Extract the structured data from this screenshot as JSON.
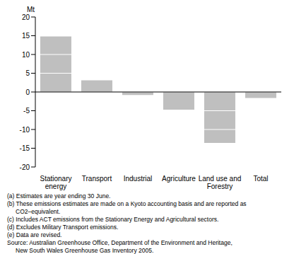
{
  "chart_data": {
    "type": "bar",
    "y_label": "Mt",
    "categories": [
      "Stationary energy",
      "Transport",
      "Industrial",
      "Agriculture",
      "Land use and Forestry",
      "Total"
    ],
    "values": [
      14.8,
      3.1,
      -0.8,
      -4.7,
      -13.6,
      -1.6
    ],
    "color": "#bfbfbf",
    "ylim": [
      -20,
      20
    ],
    "yticks": [
      -20,
      -15,
      -10,
      -5,
      0,
      5,
      10,
      15,
      20
    ],
    "grid": true,
    "annotations": [
      "(a) Estimates are year ending 30 June.",
      "(b) These emissions estimates are made on a Kyoto accounting basis and are reported as",
      "CO2–equivalent.",
      "(c) Includes ACT emissions from the Stationary Energy and Agricultural sectors.",
      "(d) Excludes Military Transport emissions.",
      "(e) Data are revised.",
      "Source: Australian Greenhouse Office, Department of the Environment and Heritage,",
      "New South Wales Greenhouse Gas Inventory 2005."
    ]
  }
}
